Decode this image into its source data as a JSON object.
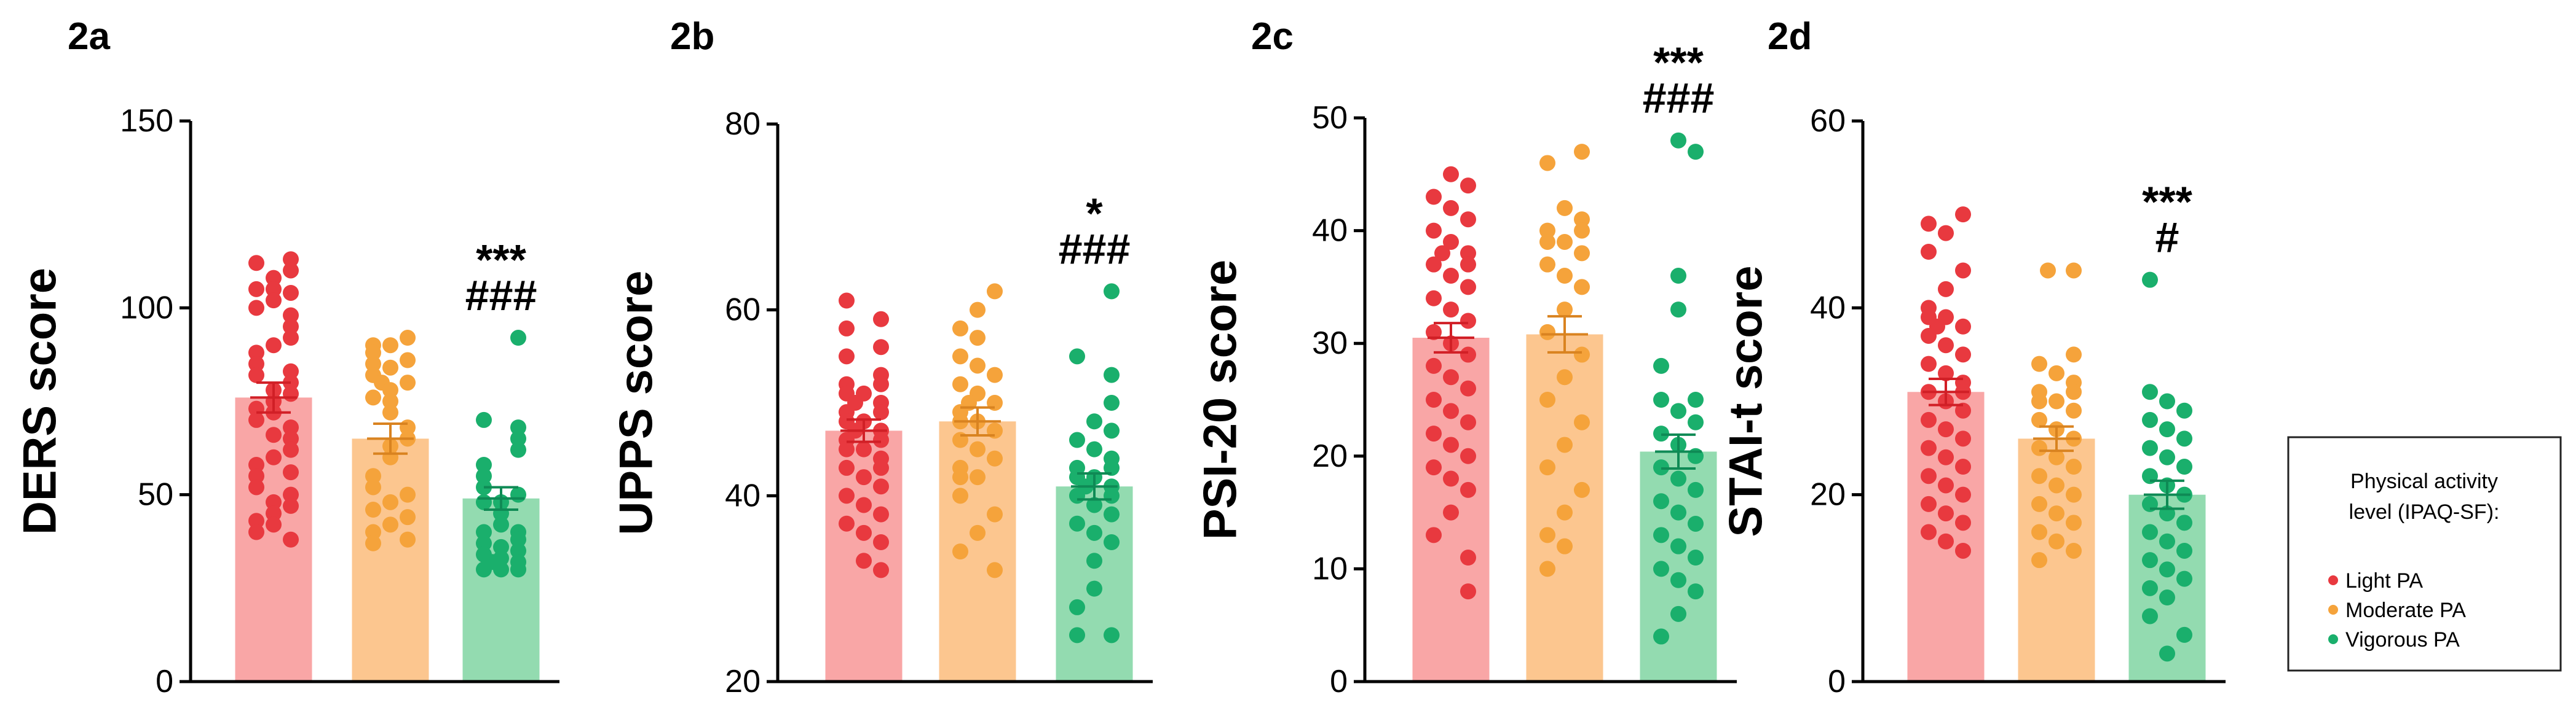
{
  "legend": {
    "title_lines": [
      "Physical activity",
      "level (IPAQ-SF):"
    ],
    "items": [
      {
        "label": "Light PA",
        "color": "#e8393f"
      },
      {
        "label": "Moderate PA",
        "color": "#f5a33b"
      },
      {
        "label": "Vigorous PA",
        "color": "#1aaf6c"
      }
    ]
  },
  "colors": {
    "bar_fills": [
      "#f9a6a6",
      "#fcc68f",
      "#93dbb0"
    ],
    "dot_colors": [
      "#e8393f",
      "#f5a33b",
      "#1aaf6c"
    ],
    "error_colors": [
      "#d11f26",
      "#d98320",
      "#0f8a55"
    ]
  },
  "chart_data": [
    {
      "type": "bar",
      "panel": "2a",
      "ylabel": "DERS score",
      "ylim": [
        0,
        150
      ],
      "yticks": [
        0,
        50,
        100,
        150
      ],
      "categories": [
        "Light PA",
        "Moderate PA",
        "Vigorous PA"
      ],
      "values": [
        76,
        65,
        49
      ],
      "sem": [
        4,
        4,
        3
      ],
      "significance": [
        [],
        [],
        [
          "***",
          "###"
        ]
      ],
      "points": [
        [
          113,
          112,
          110,
          108,
          105,
          105,
          104,
          102,
          100,
          98,
          95,
          92,
          90,
          88,
          85,
          83,
          82,
          80,
          78,
          77,
          75,
          73,
          72,
          70,
          68,
          66,
          65,
          62,
          60,
          58,
          56,
          55,
          52,
          50,
          48,
          47,
          45,
          43,
          42,
          40,
          38
        ],
        [
          92,
          90,
          90,
          88,
          86,
          85,
          84,
          82,
          80,
          80,
          78,
          76,
          75,
          72,
          68,
          65,
          63,
          60,
          55,
          52,
          50,
          48,
          46,
          44,
          42,
          40,
          38,
          37
        ],
        [
          92,
          70,
          68,
          65,
          62,
          58,
          55,
          52,
          50,
          48,
          48,
          45,
          42,
          40,
          40,
          38,
          37,
          36,
          35,
          34,
          33,
          32,
          32,
          30,
          30,
          30
        ]
      ]
    },
    {
      "type": "bar",
      "panel": "2b",
      "ylabel": "UPPS score",
      "ylim": [
        20,
        80
      ],
      "yticks": [
        20,
        40,
        60,
        80
      ],
      "categories": [
        "Light PA",
        "Moderate PA",
        "Vigorous PA"
      ],
      "values": [
        47,
        48,
        41
      ],
      "sem": [
        1.2,
        1.5,
        1.4
      ],
      "significance": [
        [],
        [],
        [
          "*",
          "###"
        ]
      ],
      "points": [
        [
          61,
          59,
          58,
          56,
          55,
          53,
          52,
          52,
          51,
          51,
          50,
          50,
          49,
          49,
          48,
          48,
          47,
          47,
          46,
          46,
          45,
          45,
          44,
          43,
          43,
          42,
          41,
          40,
          39,
          38,
          37,
          36,
          35,
          33,
          32
        ],
        [
          62,
          60,
          58,
          57,
          55,
          54,
          53,
          52,
          51,
          50,
          50,
          49,
          48,
          48,
          47,
          46,
          45,
          44,
          43,
          42,
          42,
          40,
          38,
          36,
          34,
          32
        ],
        [
          62,
          55,
          53,
          50,
          48,
          47,
          46,
          45,
          44,
          43,
          43,
          42,
          42,
          41,
          41,
          40,
          40,
          39,
          38,
          37,
          36,
          35,
          33,
          30,
          28,
          25,
          25
        ]
      ]
    },
    {
      "type": "bar",
      "panel": "2c",
      "ylabel": "PSI-20 score",
      "ylim": [
        0,
        50
      ],
      "yticks": [
        0,
        10,
        20,
        30,
        40,
        50
      ],
      "categories": [
        "Light PA",
        "Moderate PA",
        "Vigorous PA"
      ],
      "values": [
        30.5,
        30.8,
        20.4
      ],
      "sem": [
        1.3,
        1.6,
        1.5
      ],
      "significance": [
        [],
        [],
        [
          "***",
          "###"
        ]
      ],
      "points": [
        [
          45,
          44,
          43,
          42,
          41,
          40,
          39,
          38,
          38,
          37,
          37,
          36,
          35,
          34,
          33,
          32,
          31,
          30,
          29,
          28,
          27,
          26,
          25,
          24,
          23,
          22,
          21,
          20,
          19,
          18,
          17,
          15,
          13,
          11,
          8
        ],
        [
          47,
          46,
          42,
          41,
          40,
          40,
          39,
          39,
          38,
          37,
          36,
          35,
          33,
          31,
          29,
          27,
          25,
          23,
          21,
          19,
          17,
          15,
          13,
          12,
          10
        ],
        [
          48,
          47,
          36,
          33,
          28,
          25,
          25,
          24,
          23,
          22,
          21,
          20,
          19,
          18,
          17,
          16,
          15,
          14,
          13,
          12,
          11,
          10,
          9,
          8,
          6,
          4
        ]
      ]
    },
    {
      "type": "bar",
      "panel": "2d",
      "ylabel": "STAI-t score",
      "ylim": [
        0,
        60
      ],
      "yticks": [
        0,
        20,
        40,
        60
      ],
      "categories": [
        "Light PA",
        "Moderate PA",
        "Vigorous PA"
      ],
      "values": [
        31,
        26,
        20
      ],
      "sem": [
        1.4,
        1.3,
        1.5
      ],
      "significance": [
        [],
        [],
        [
          "***",
          "#"
        ]
      ],
      "points": [
        [
          50,
          49,
          48,
          46,
          44,
          42,
          40,
          39,
          39,
          38,
          38,
          37,
          36,
          35,
          34,
          33,
          32,
          31,
          31,
          30,
          29,
          28,
          27,
          26,
          25,
          24,
          23,
          22,
          21,
          20,
          19,
          18,
          17,
          16,
          15,
          14
        ],
        [
          44,
          44,
          35,
          34,
          33,
          32,
          31,
          31,
          30,
          30,
          29,
          28,
          27,
          26,
          25,
          24,
          23,
          22,
          21,
          20,
          19,
          18,
          17,
          16,
          15,
          14,
          13
        ],
        [
          43,
          31,
          30,
          29,
          28,
          27,
          26,
          25,
          24,
          23,
          22,
          21,
          20,
          19,
          18,
          17,
          16,
          15,
          14,
          13,
          12,
          11,
          10,
          9,
          7,
          5,
          3
        ]
      ]
    }
  ]
}
